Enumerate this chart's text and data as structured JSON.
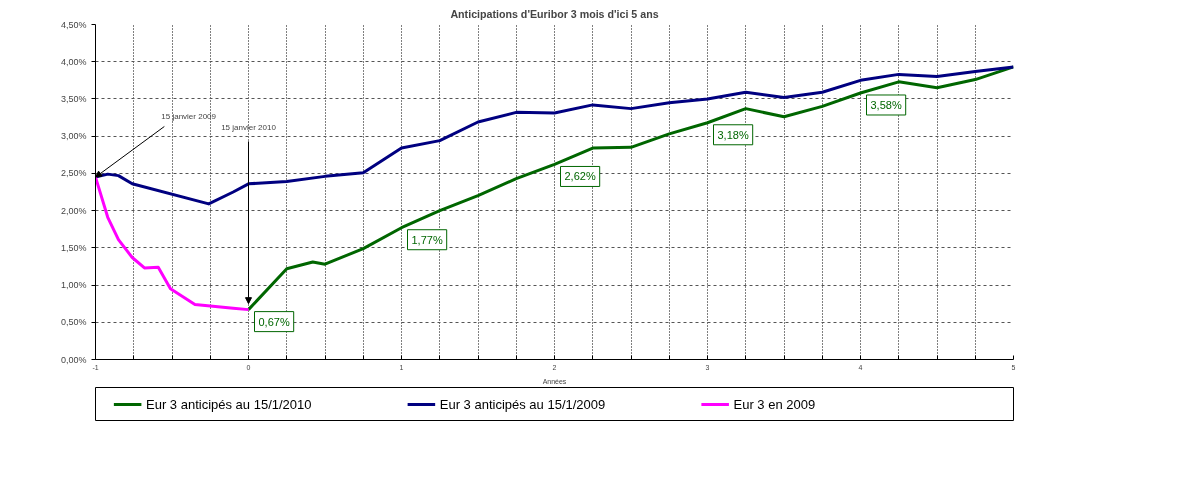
{
  "chart_data": {
    "type": "line",
    "title": "Anticipations d'Euribor 3 mois d'ici 5 ans",
    "xlabel": "Années",
    "xlim": [
      -1,
      5
    ],
    "ylim": [
      0,
      4.5
    ],
    "xticks": [
      -1,
      {
        "value": -0.75,
        "label": null
      },
      {
        "value": -0.5,
        "label": null
      },
      {
        "value": -0.25,
        "label": null
      },
      0,
      {
        "value": 0.25,
        "label": null
      },
      {
        "value": 0.5,
        "label": null
      },
      {
        "value": 0.75,
        "label": null
      },
      1,
      {
        "value": 1.25,
        "label": null
      },
      {
        "value": 1.5,
        "label": null
      },
      {
        "value": 1.75,
        "label": null
      },
      2,
      {
        "value": 2.25,
        "label": null
      },
      {
        "value": 2.5,
        "label": null
      },
      {
        "value": 2.75,
        "label": null
      },
      3,
      {
        "value": 3.25,
        "label": null
      },
      {
        "value": 3.5,
        "label": null
      },
      {
        "value": 3.75,
        "label": null
      },
      4,
      {
        "value": 4.25,
        "label": null
      },
      {
        "value": 4.5,
        "label": null
      },
      {
        "value": 4.75,
        "label": null
      },
      5
    ],
    "yticks": [
      {
        "value": 0,
        "label": "0,00%"
      },
      {
        "value": 0.5,
        "label": "0,50%"
      },
      {
        "value": 1,
        "label": "1,00%"
      },
      {
        "value": 1.5,
        "label": "1,50%"
      },
      {
        "value": 2,
        "label": "2,00%"
      },
      {
        "value": 2.5,
        "label": "2,50%"
      },
      {
        "value": 3,
        "label": "3,00%"
      },
      {
        "value": 3.5,
        "label": "3,50%"
      },
      {
        "value": 4,
        "label": "4,00%"
      },
      {
        "value": 4.5,
        "label": "4,50%"
      }
    ],
    "grid": true,
    "legend": "bottom",
    "marker": "none",
    "line_style": "solid",
    "series": [
      {
        "name": "Eur 3 anticipés au 15/1/2010",
        "color": "#006600",
        "x": [
          0,
          0.25,
          0.42,
          0.5,
          0.75,
          1,
          1.25,
          1.5,
          1.75,
          2,
          2.25,
          2.5,
          2.75,
          3,
          3.25,
          3.5,
          3.75,
          4,
          4.25,
          4.5,
          4.75,
          5
        ],
        "values": [
          0.67,
          1.22,
          1.31,
          1.28,
          1.49,
          1.77,
          2.0,
          2.2,
          2.43,
          2.62,
          2.84,
          2.85,
          3.03,
          3.18,
          3.37,
          3.26,
          3.4,
          3.58,
          3.73,
          3.65,
          3.76,
          3.93
        ],
        "value_labels": [
          "0,67%",
          null,
          null,
          null,
          null,
          "1,77%",
          null,
          null,
          null,
          "2,62%",
          null,
          null,
          null,
          "3,18%",
          null,
          null,
          null,
          "3,58%",
          null,
          null,
          null,
          null
        ]
      },
      {
        "name": "Eur 3 anticipés au 15/1/2009",
        "color": "#000080",
        "x": [
          -1,
          -0.92,
          -0.85,
          -0.76,
          -0.26,
          -0.1,
          0,
          0.25,
          0.5,
          0.75,
          1,
          1.25,
          1.5,
          1.75,
          2,
          2.25,
          2.5,
          2.75,
          3,
          3.25,
          3.5,
          3.75,
          4,
          4.25,
          4.5,
          4.75,
          5
        ],
        "values": [
          2.45,
          2.49,
          2.47,
          2.36,
          2.09,
          2.25,
          2.36,
          2.39,
          2.46,
          2.51,
          2.84,
          2.94,
          3.19,
          3.32,
          3.31,
          3.42,
          3.37,
          3.45,
          3.5,
          3.59,
          3.52,
          3.59,
          3.75,
          3.83,
          3.8,
          3.87,
          3.93
        ]
      },
      {
        "name": "Eur 3 en 2009",
        "color": "#ff00ff",
        "x": [
          -1,
          -0.92,
          -0.85,
          -0.76,
          -0.68,
          -0.59,
          -0.51,
          -0.35,
          -0.1,
          0
        ],
        "values": [
          2.45,
          1.91,
          1.61,
          1.37,
          1.23,
          1.24,
          0.95,
          0.74,
          0.69,
          0.67
        ]
      }
    ],
    "annotations": [
      {
        "text": "15 janvier 2009",
        "x": -1,
        "y": 2.45
      },
      {
        "text": "15 janvier 2010",
        "x": 0,
        "y": 0.75
      }
    ]
  }
}
